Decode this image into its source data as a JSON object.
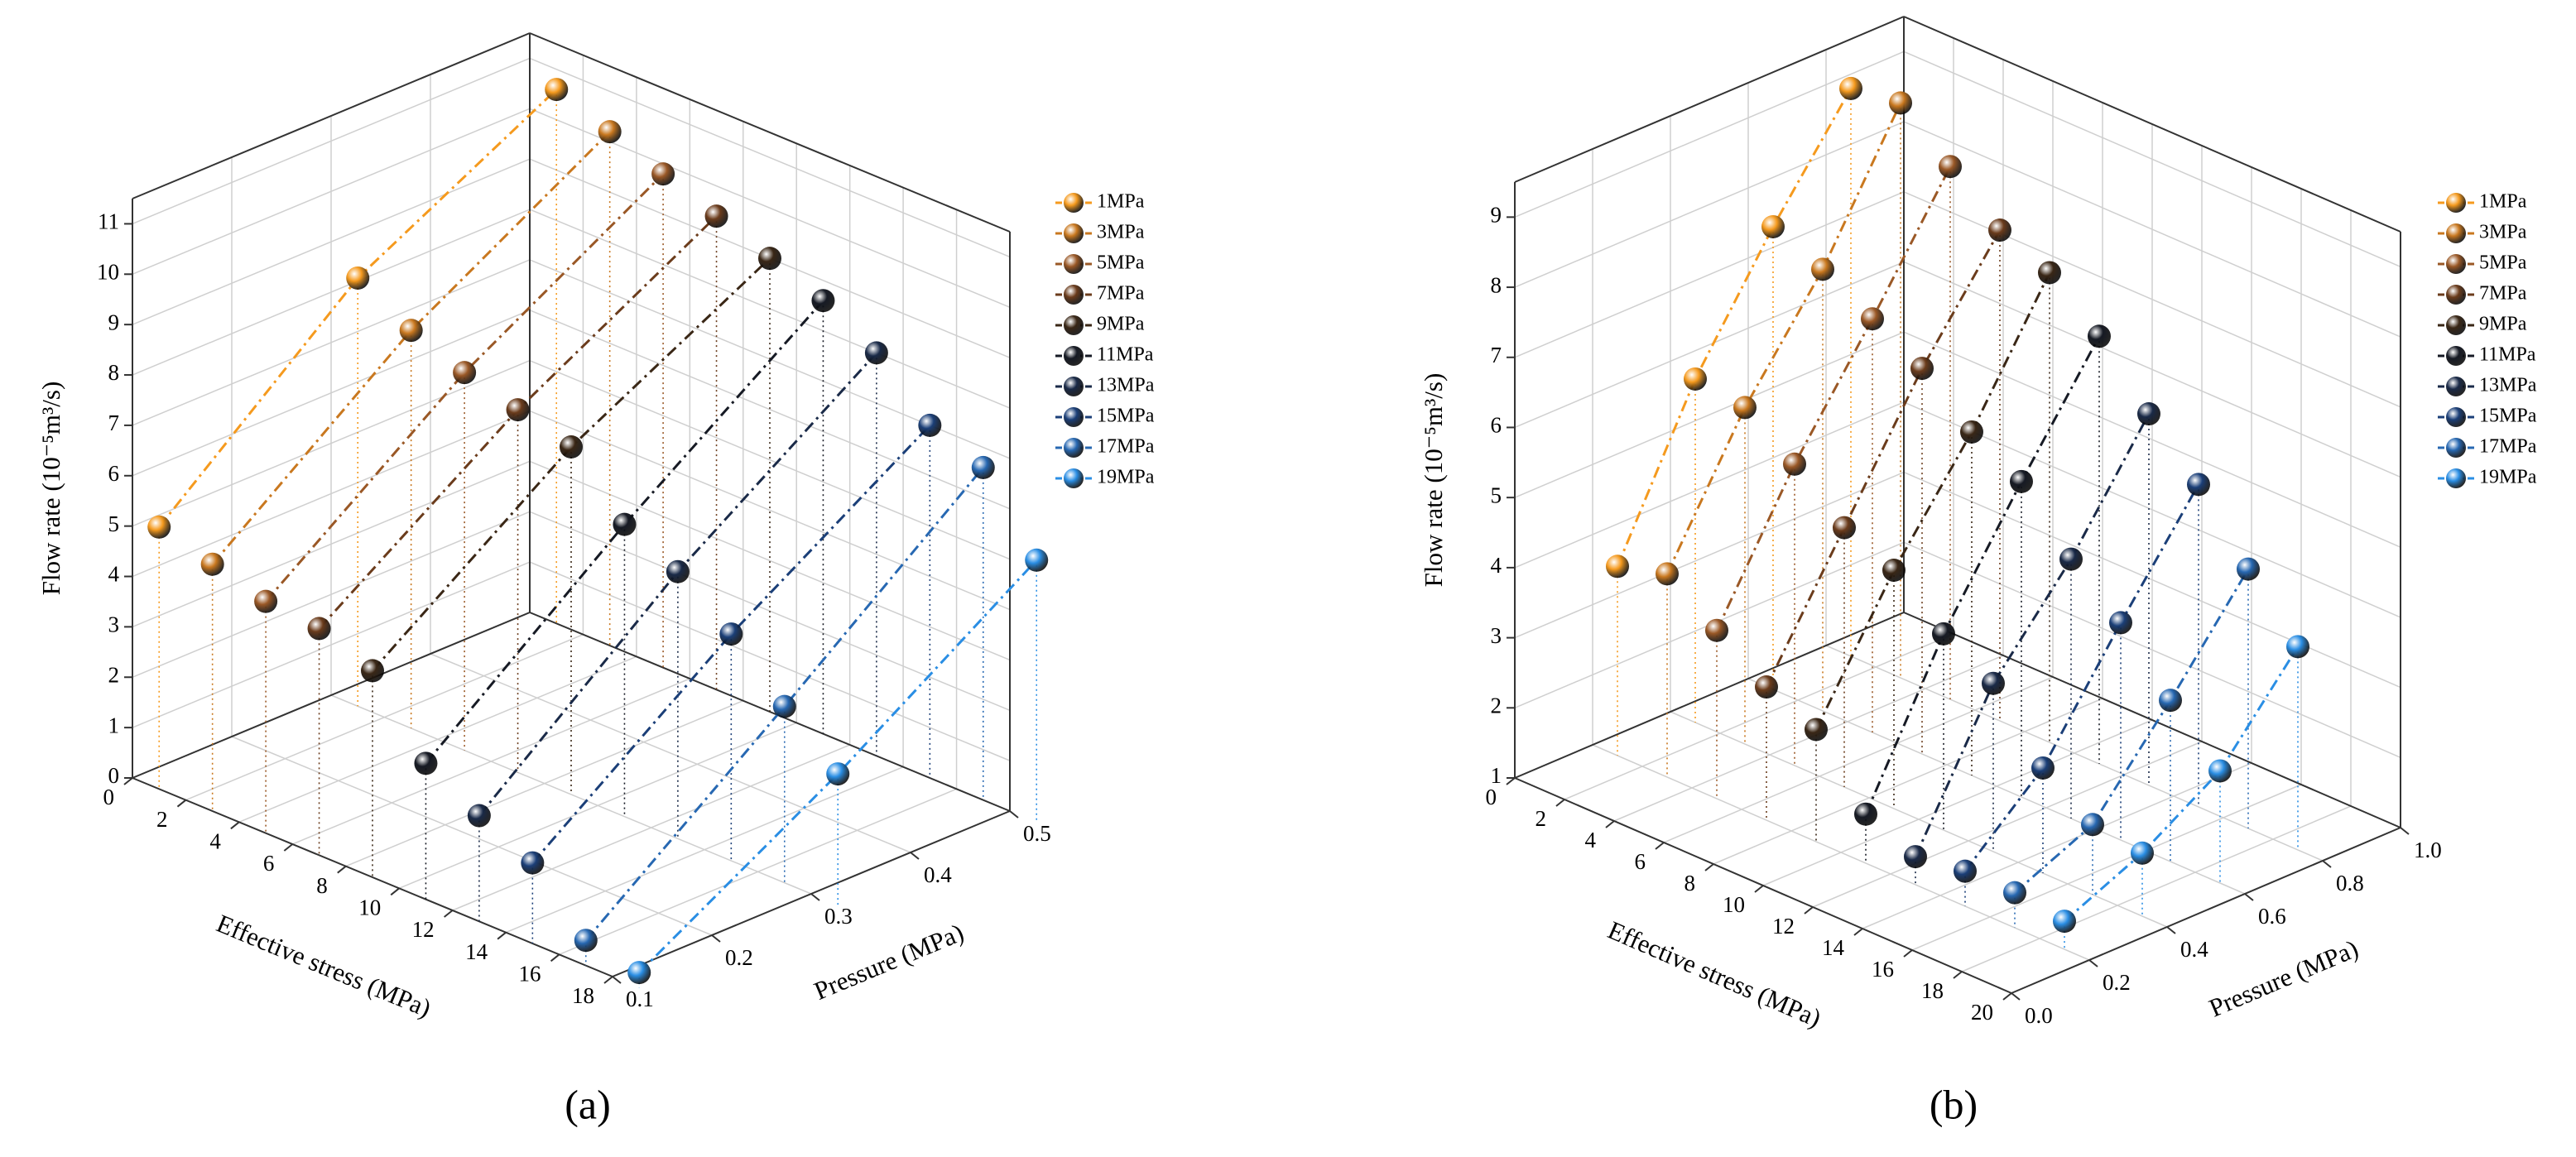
{
  "chart_data": [
    {
      "type": "scatter3d",
      "caption": "(a)",
      "xlabel": "Effective stress (MPa)",
      "ylabel": "Pressure (MPa)",
      "zlabel": "Flow rate (10⁻⁵m³/s)",
      "xlim": [
        0,
        18
      ],
      "xticks": [
        0,
        2,
        4,
        6,
        8,
        10,
        12,
        14,
        16,
        18
      ],
      "ylim": [
        0.1,
        0.5
      ],
      "yticks": [
        0.1,
        0.2,
        0.3,
        0.4,
        0.5
      ],
      "zlim": [
        0,
        11.5
      ],
      "zticks": [
        0,
        1,
        2,
        3,
        4,
        5,
        6,
        7,
        8,
        9,
        10,
        11
      ],
      "pressure": [
        0.1,
        0.3,
        0.5
      ],
      "series": [
        {
          "name": "1MPa",
          "stress": 1,
          "color": "#f59a1e",
          "values": [
            5.2,
            8.5,
            10.6
          ]
        },
        {
          "name": "3MPa",
          "stress": 3,
          "color": "#c9781f",
          "values": [
            4.9,
            7.9,
            10.2
          ]
        },
        {
          "name": "5MPa",
          "stress": 5,
          "color": "#9a5826",
          "values": [
            4.6,
            7.5,
            9.8
          ]
        },
        {
          "name": "7MPa",
          "stress": 7,
          "color": "#6b3c1c",
          "values": [
            4.5,
            7.2,
            9.4
          ]
        },
        {
          "name": "9MPa",
          "stress": 9,
          "color": "#3a2716",
          "values": [
            4.1,
            6.9,
            9.0
          ]
        },
        {
          "name": "11MPa",
          "stress": 11,
          "color": "#161a24",
          "values": [
            2.7,
            5.8,
            8.6
          ]
        },
        {
          "name": "13MPa",
          "stress": 13,
          "color": "#1a2a48",
          "values": [
            2.1,
            5.3,
            8.0
          ]
        },
        {
          "name": "15MPa",
          "stress": 15,
          "color": "#1b3f78",
          "values": [
            1.6,
            4.5,
            7.0
          ]
        },
        {
          "name": "17MPa",
          "stress": 17,
          "color": "#2768b2",
          "values": [
            0.5,
            3.5,
            6.6
          ]
        },
        {
          "name": "19MPa",
          "stress": 19,
          "color": "#2a8ee4",
          "values": [
            0.3,
            2.6,
            5.2
          ]
        }
      ]
    },
    {
      "type": "scatter3d",
      "caption": "(b)",
      "xlabel": "Effective stress (MPa)",
      "ylabel": "Pressure (MPa)",
      "zlabel": "Flow rate (10⁻⁵m³/s)",
      "xlim": [
        0,
        20
      ],
      "xticks": [
        0,
        2,
        4,
        6,
        8,
        10,
        12,
        14,
        16,
        18,
        20
      ],
      "ylim": [
        0,
        1
      ],
      "yticks": [
        {
          "value": 0,
          "label": "0.0"
        },
        0.2,
        0.4,
        0.6,
        0.8,
        {
          "value": 1,
          "label": "1.0"
        }
      ],
      "zlim": [
        1,
        9.5
      ],
      "zticks": [
        1,
        2,
        3,
        4,
        5,
        6,
        7,
        8,
        9
      ],
      "pressure": [
        0.2,
        0.4,
        0.6,
        0.8
      ],
      "series": [
        {
          "name": "1MPa",
          "stress": 1,
          "color": "#f59a1e",
          "values": [
            3.7,
            5.9,
            7.6,
            9.1
          ]
        },
        {
          "name": "3MPa",
          "stress": 3,
          "color": "#c9781f",
          "values": [
            3.9,
            5.8,
            7.3,
            9.2
          ]
        },
        {
          "name": "5MPa",
          "stress": 5,
          "color": "#9a5826",
          "values": [
            3.4,
            5.3,
            6.9,
            8.6
          ]
        },
        {
          "name": "7MPa",
          "stress": 7,
          "color": "#6b3c1c",
          "values": [
            2.9,
            4.7,
            6.5,
            8.0
          ]
        },
        {
          "name": "9MPa",
          "stress": 9,
          "color": "#3a2716",
          "values": [
            2.6,
            4.4,
            5.9,
            7.7
          ]
        },
        {
          "name": "11MPa",
          "stress": 11,
          "color": "#161a24",
          "values": [
            1.7,
            3.8,
            5.5,
            7.1
          ]
        },
        {
          "name": "13MPa",
          "stress": 13,
          "color": "#1a2a48",
          "values": [
            1.4,
            3.4,
            4.7,
            6.3
          ]
        },
        {
          "name": "15MPa",
          "stress": 15,
          "color": "#1b3f78",
          "values": [
            1.5,
            2.5,
            4.1,
            5.6
          ]
        },
        {
          "name": "17MPa",
          "stress": 17,
          "color": "#2768b2",
          "values": [
            1.5,
            2.0,
            3.3,
            4.7
          ]
        },
        {
          "name": "19MPa",
          "stress": 19,
          "color": "#2a8ee4",
          "values": [
            1.4,
            1.9,
            2.6,
            3.9
          ]
        }
      ]
    }
  ]
}
